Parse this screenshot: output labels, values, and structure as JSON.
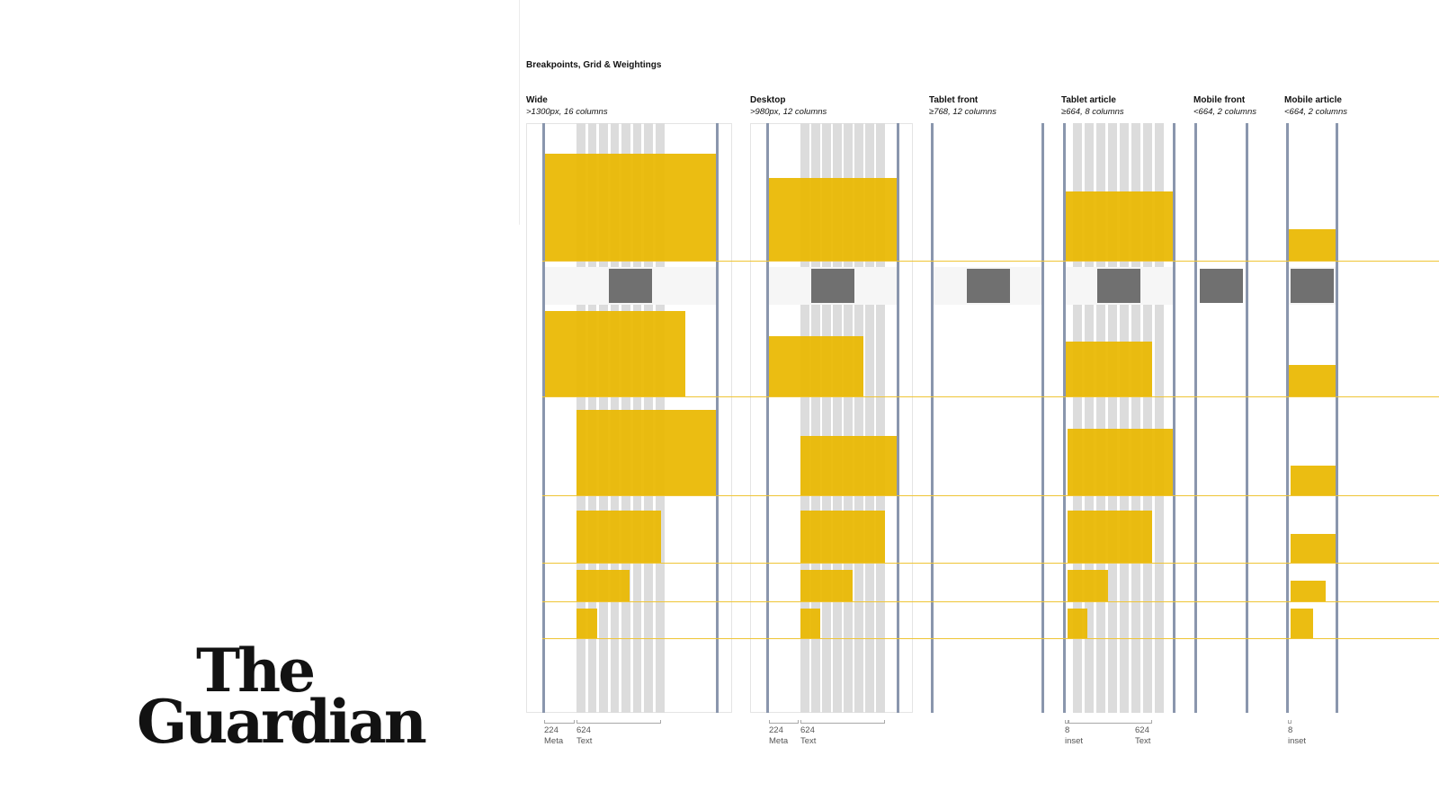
{
  "logo": {
    "line1": "The",
    "line2": "Guardian"
  },
  "diagram": {
    "title": "Breakpoints, Grid & Weightings",
    "breakpoints": [
      {
        "title": "Wide",
        "subtitle": ">1300px, 16 columns"
      },
      {
        "title": "Desktop",
        "subtitle": ">980px, 12 columns"
      },
      {
        "title": "Tablet front",
        "subtitle": "≥768, 12 columns"
      },
      {
        "title": "Tablet article",
        "subtitle": "≥664, 8 columns"
      },
      {
        "title": "Mobile front",
        "subtitle": "<664, 2 columns"
      },
      {
        "title": "Mobile article",
        "subtitle": "<664, 2 columns"
      }
    ],
    "dimensions": [
      {
        "value": "224",
        "label": "Meta"
      },
      {
        "value": "624",
        "label": "Text"
      },
      {
        "value": "224",
        "label": "Meta"
      },
      {
        "value": "624",
        "label": "Text"
      },
      {
        "value": "8",
        "label": "inset"
      },
      {
        "value": "624",
        "label": "Text"
      },
      {
        "value": "8",
        "label": "inset"
      }
    ]
  },
  "colors": {
    "weighting_block": "#e9b800",
    "grid_column": "#dcdcdc",
    "edge": "#8a96ad",
    "guide_line": "#efc536",
    "ad_slot": "#707070"
  }
}
